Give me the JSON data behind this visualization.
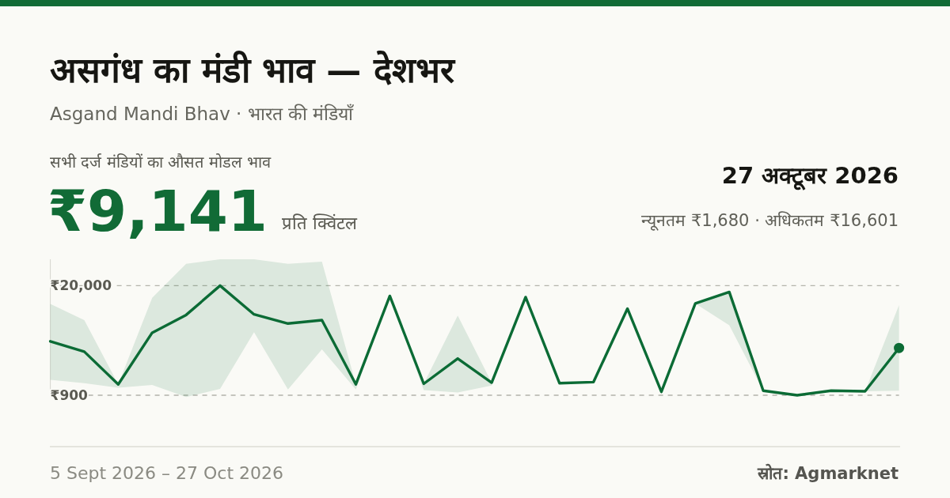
{
  "chart_data": {
    "type": "line",
    "title": "असगंध का मंडी भाव — देशभर",
    "subtitle": "Asgand Mandi Bhav · भारत की मंडियाँ",
    "annotations": [
      "सभी दर्ज मंडियों का औसत मोडल भाव",
      "₹9,141",
      "प्रति क्विंटल",
      "27 अक्टूबर 2026",
      "न्यूनतम ₹1,680 · अधिकतम ₹16,601",
      "5 Sept 2026 – 27 Oct 2026",
      "स्रोत: Agmarknet"
    ],
    "categories": [
      null,
      null,
      null,
      null,
      null,
      null,
      null,
      null,
      null,
      null,
      null,
      null,
      null,
      null,
      null,
      null,
      null,
      null,
      null,
      null,
      null,
      null,
      null,
      null,
      null,
      null
    ],
    "series": [
      {
        "color": "#0b6b35",
        "values": [
          10300,
          8500,
          2800,
          11800,
          14900,
          20000,
          15000,
          13400,
          14000,
          2800,
          18200,
          2900,
          7300,
          3100,
          18000,
          3000,
          3200,
          16000,
          1500,
          16900,
          18900,
          1700,
          900,
          1700,
          1600,
          9141
        ],
        "lower": [
          3600,
          3000,
          2200,
          2700,
          600,
          2000,
          11900,
          1900,
          8900,
          1900,
          18200,
          1800,
          1400,
          2600,
          18000,
          3000,
          3200,
          16000,
          1500,
          16900,
          13100,
          1700,
          900,
          1700,
          1600,
          1680
        ],
        "upper": [
          16800,
          14000,
          2800,
          17900,
          23800,
          24600,
          24600,
          23800,
          24200,
          2800,
          18200,
          2900,
          14800,
          3100,
          18000,
          3000,
          3200,
          16000,
          1500,
          16900,
          18900,
          1700,
          900,
          1700,
          1600,
          16601
        ]
      },
      {
        "type": "scatter",
        "color": "#0b6b35",
        "marker": "circle",
        "values": [
          null,
          null,
          null,
          null,
          null,
          null,
          null,
          null,
          null,
          null,
          null,
          null,
          null,
          null,
          null,
          null,
          null,
          null,
          null,
          null,
          null,
          null,
          null,
          null,
          null,
          9141
        ]
      }
    ],
    "ylim": [
      600,
      24600
    ],
    "yticks": [
      {
        "value": 20000,
        "label": "₹20,000"
      },
      {
        "value": 900,
        "label": "₹900"
      }
    ],
    "grid": "y"
  }
}
